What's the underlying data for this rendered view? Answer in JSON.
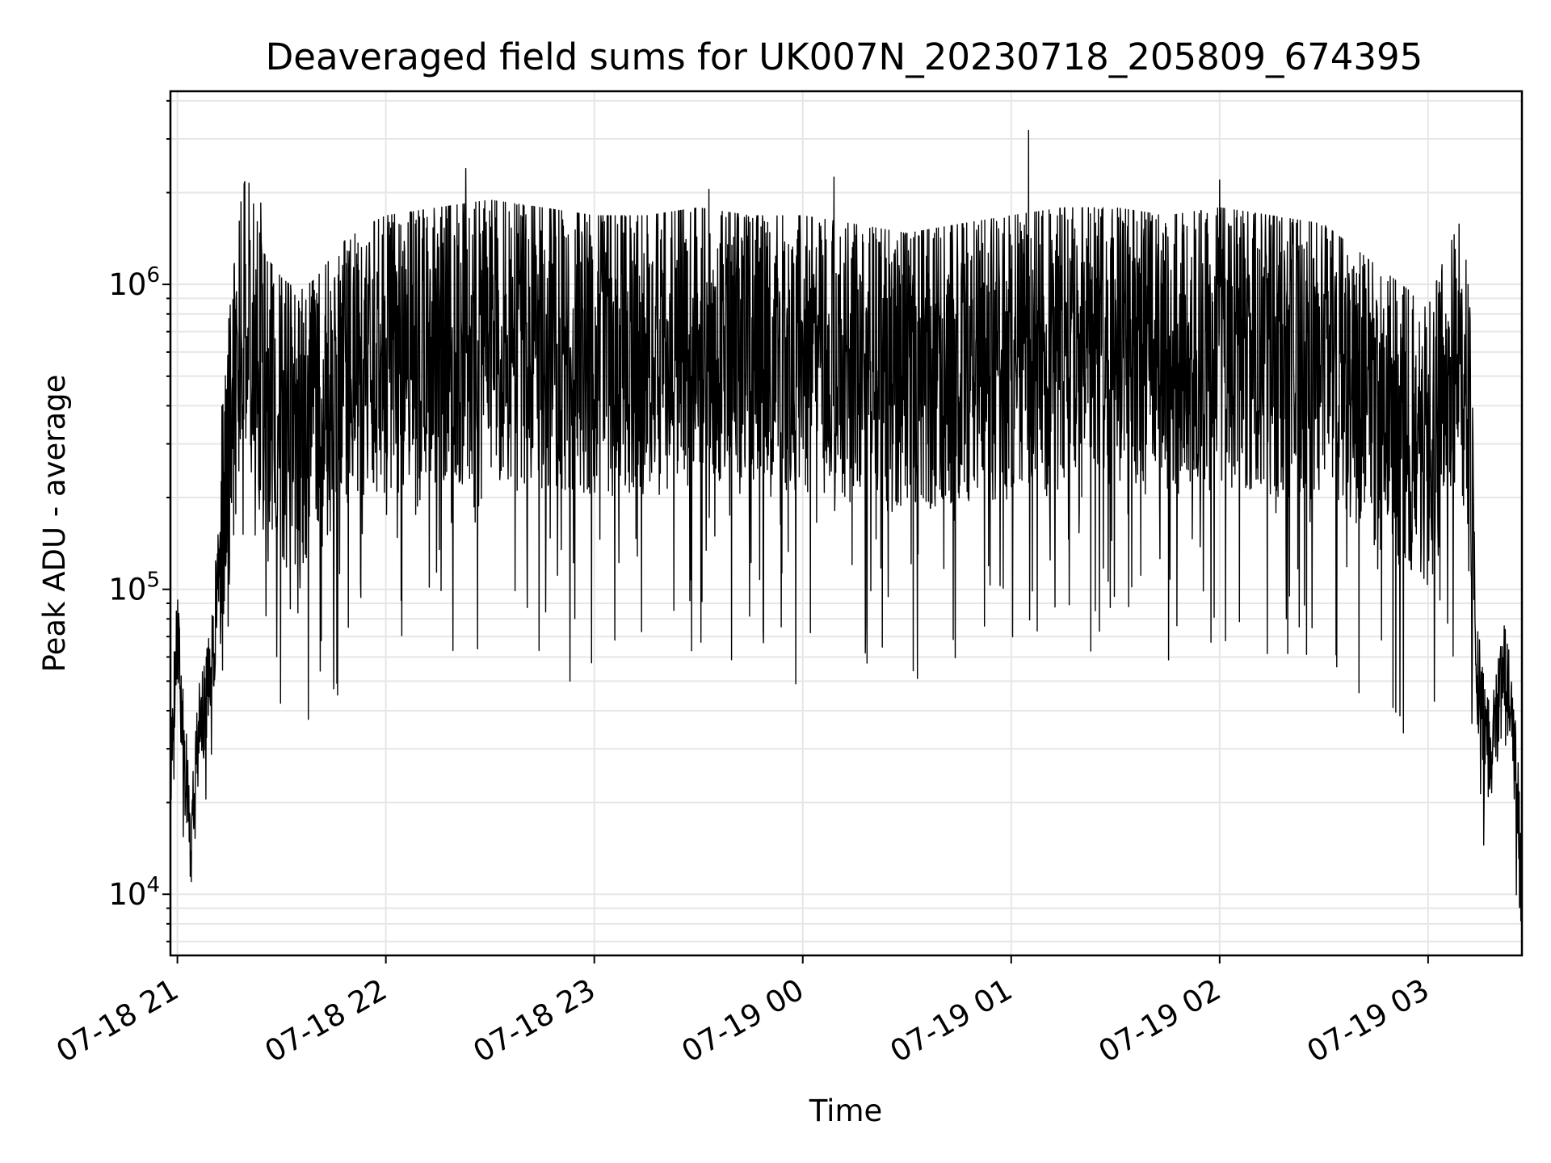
{
  "chart_data": {
    "type": "line",
    "title": "Deaveraged field sums for UK007N_20230718_205809_674395",
    "xlabel": "Time",
    "ylabel": "Peak ADU - average",
    "yscale": "log",
    "ylim": [
      6300,
      4300000
    ],
    "xlim": [
      "2023-07-18 20:58",
      "2023-07-19 03:27"
    ],
    "grid": true,
    "x_ticks": [
      "07-18 21",
      "07-18 22",
      "07-18 23",
      "07-19 00",
      "07-19 01",
      "07-19 02",
      "07-19 03"
    ],
    "y_ticks": [
      {
        "base": "10",
        "exp": "4",
        "value": 10000
      },
      {
        "base": "10",
        "exp": "5",
        "value": 100000
      },
      {
        "base": "10",
        "exp": "6",
        "value": 1000000
      }
    ],
    "line_color": "#000000",
    "series": [
      {
        "points": [
          [
            "2023-07-18 20:58",
            23000
          ],
          [
            "2023-07-18 21:00",
            80000
          ],
          [
            "2023-07-18 21:02",
            30000
          ],
          [
            "2023-07-18 21:04",
            15000
          ],
          [
            "2023-07-18 21:06",
            35000
          ],
          [
            "2023-07-18 21:08",
            45000
          ],
          [
            "2023-07-18 21:10",
            60000
          ],
          [
            "2023-07-18 21:12",
            140000
          ],
          [
            "2023-07-18 21:14",
            300000
          ],
          [
            "2023-07-18 21:16",
            500000
          ],
          [
            "2023-07-18 21:18",
            900000
          ],
          [
            "2023-07-18 21:20",
            1100000
          ],
          [
            "2023-07-18 21:25",
            600000
          ],
          [
            "2023-07-18 21:30",
            500000
          ],
          [
            "2023-07-18 21:35",
            450000
          ],
          [
            "2023-07-18 21:40",
            500000
          ],
          [
            "2023-07-18 21:45",
            600000
          ],
          [
            "2023-07-18 21:50",
            700000
          ],
          [
            "2023-07-18 22:00",
            800000
          ],
          [
            "2023-07-18 22:15",
            850000
          ],
          [
            "2023-07-18 22:30",
            900000
          ],
          [
            "2023-07-18 22:45",
            850000
          ],
          [
            "2023-07-18 23:00",
            800000
          ],
          [
            "2023-07-18 23:15",
            800000
          ],
          [
            "2023-07-18 23:30",
            850000
          ],
          [
            "2023-07-18 23:45",
            800000
          ],
          [
            "2023-07-19 00:00",
            800000
          ],
          [
            "2023-07-19 00:15",
            750000
          ],
          [
            "2023-07-19 00:30",
            700000
          ],
          [
            "2023-07-19 00:45",
            750000
          ],
          [
            "2023-07-19 01:00",
            800000
          ],
          [
            "2023-07-19 01:15",
            850000
          ],
          [
            "2023-07-19 01:30",
            850000
          ],
          [
            "2023-07-19 01:45",
            800000
          ],
          [
            "2023-07-19 02:00",
            850000
          ],
          [
            "2023-07-19 02:15",
            800000
          ],
          [
            "2023-07-19 02:30",
            750000
          ],
          [
            "2023-07-19 02:45",
            550000
          ],
          [
            "2023-07-19 02:55",
            450000
          ],
          [
            "2023-07-19 03:00",
            400000
          ],
          [
            "2023-07-19 03:05",
            600000
          ],
          [
            "2023-07-19 03:10",
            800000
          ],
          [
            "2023-07-19 03:12",
            400000
          ],
          [
            "2023-07-19 03:14",
            60000
          ],
          [
            "2023-07-19 03:16",
            40000
          ],
          [
            "2023-07-19 03:18",
            30000
          ],
          [
            "2023-07-19 03:20",
            45000
          ],
          [
            "2023-07-19 03:22",
            60000
          ],
          [
            "2023-07-19 03:24",
            40000
          ],
          [
            "2023-07-19 03:26",
            20000
          ],
          [
            "2023-07-19 03:27",
            8500
          ]
        ]
      }
    ],
    "annotated_spikes": [
      [
        "2023-07-18 21:24",
        1850000
      ],
      [
        "2023-07-18 22:23",
        2400000
      ],
      [
        "2023-07-18 23:33",
        2050000
      ],
      [
        "2023-07-19 00:09",
        2250000
      ],
      [
        "2023-07-19 01:05",
        3200000
      ],
      [
        "2023-07-19 02:00",
        2200000
      ]
    ],
    "annotated_dips": [
      [
        "2023-07-18 21:04",
        11000
      ],
      [
        "2023-07-18 22:53",
        50000
      ],
      [
        "2023-07-18 23:58",
        49000
      ],
      [
        "2023-07-19 00:33",
        51000
      ],
      [
        "2023-07-19 03:16",
        14500
      ]
    ]
  }
}
